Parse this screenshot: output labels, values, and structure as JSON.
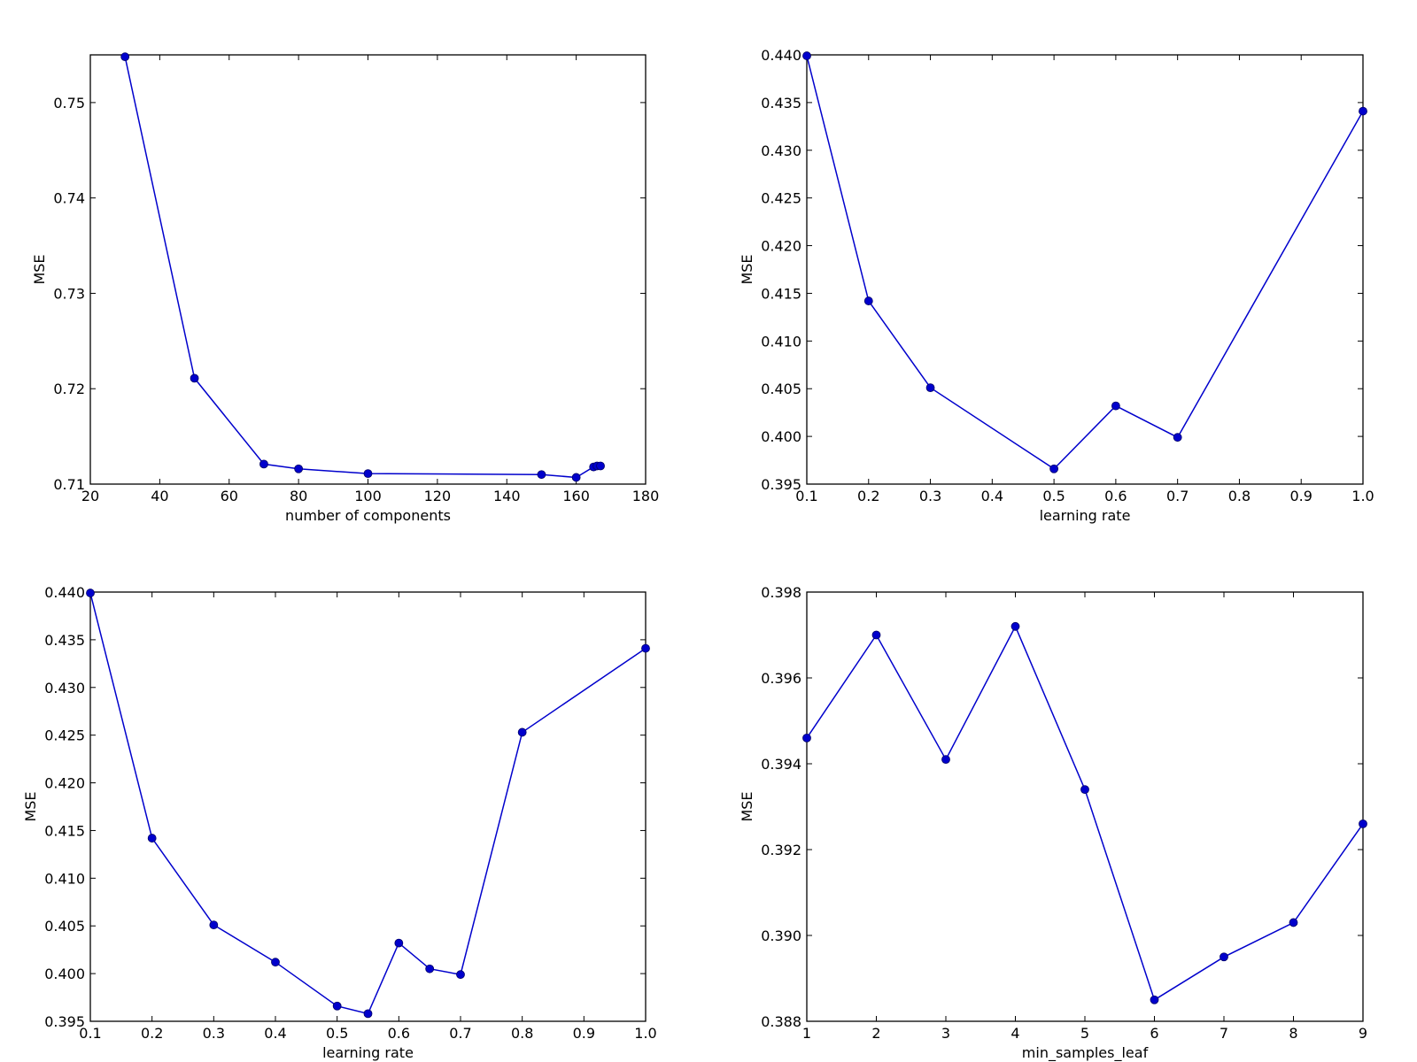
{
  "colors": {
    "line": "#0000cc",
    "marker": "#0000cc",
    "marker_edge": "#000066",
    "axes": "#000000",
    "background": "#ffffff"
  },
  "chart_data": [
    {
      "type": "line",
      "title": "",
      "xlabel": "number of components",
      "ylabel": "MSE",
      "xlim": [
        20,
        180
      ],
      "ylim": [
        0.71,
        0.755
      ],
      "xticks": [
        20,
        40,
        60,
        80,
        100,
        120,
        140,
        160,
        180
      ],
      "yticks": [
        0.71,
        0.72,
        0.73,
        0.74,
        0.75
      ],
      "xtick_labels": [
        "20",
        "40",
        "60",
        "80",
        "100",
        "120",
        "140",
        "160",
        "180"
      ],
      "ytick_labels": [
        "0.71",
        "0.72",
        "0.73",
        "0.74",
        "0.75"
      ],
      "grid": false,
      "x": [
        30,
        50,
        70,
        80,
        100,
        150,
        160,
        165,
        166,
        167
      ],
      "y": [
        0.7548,
        0.7211,
        0.7121,
        0.7116,
        0.7111,
        0.711,
        0.7107,
        0.7118,
        0.7119,
        0.7119
      ]
    },
    {
      "type": "line",
      "title": "",
      "xlabel": "learning rate",
      "ylabel": "MSE",
      "xlim": [
        0.1,
        1.0
      ],
      "ylim": [
        0.395,
        0.44
      ],
      "xticks": [
        0.1,
        0.2,
        0.3,
        0.4,
        0.5,
        0.6,
        0.7,
        0.8,
        0.9,
        1.0
      ],
      "yticks": [
        0.395,
        0.4,
        0.405,
        0.41,
        0.415,
        0.42,
        0.425,
        0.43,
        0.435,
        0.44
      ],
      "xtick_labels": [
        "0.1",
        "0.2",
        "0.3",
        "0.4",
        "0.5",
        "0.6",
        "0.7",
        "0.8",
        "0.9",
        "1.0"
      ],
      "ytick_labels": [
        "0.395",
        "0.400",
        "0.405",
        "0.410",
        "0.415",
        "0.420",
        "0.425",
        "0.430",
        "0.435",
        "0.440"
      ],
      "grid": false,
      "x": [
        0.1,
        0.2,
        0.3,
        0.5,
        0.6,
        0.7,
        1.0
      ],
      "y": [
        0.4399,
        0.4142,
        0.4051,
        0.3966,
        0.4032,
        0.3999,
        0.4341
      ]
    },
    {
      "type": "line",
      "title": "",
      "xlabel": "learning rate",
      "ylabel": "MSE",
      "xlim": [
        0.1,
        1.0
      ],
      "ylim": [
        0.395,
        0.44
      ],
      "xticks": [
        0.1,
        0.2,
        0.3,
        0.4,
        0.5,
        0.6,
        0.7,
        0.8,
        0.9,
        1.0
      ],
      "yticks": [
        0.395,
        0.4,
        0.405,
        0.41,
        0.415,
        0.42,
        0.425,
        0.43,
        0.435,
        0.44
      ],
      "xtick_labels": [
        "0.1",
        "0.2",
        "0.3",
        "0.4",
        "0.5",
        "0.6",
        "0.7",
        "0.8",
        "0.9",
        "1.0"
      ],
      "ytick_labels": [
        "0.395",
        "0.400",
        "0.405",
        "0.410",
        "0.415",
        "0.420",
        "0.425",
        "0.430",
        "0.435",
        "0.440"
      ],
      "grid": false,
      "x": [
        0.1,
        0.2,
        0.3,
        0.4,
        0.5,
        0.55,
        0.6,
        0.65,
        0.7,
        0.8,
        1.0
      ],
      "y": [
        0.4399,
        0.4142,
        0.4051,
        0.4012,
        0.3966,
        0.3958,
        0.4032,
        0.4005,
        0.3999,
        0.4253,
        0.4341
      ]
    },
    {
      "type": "line",
      "title": "",
      "xlabel": "min_samples_leaf",
      "ylabel": "MSE",
      "xlim": [
        1,
        9
      ],
      "ylim": [
        0.388,
        0.398
      ],
      "xticks": [
        1,
        2,
        3,
        4,
        5,
        6,
        7,
        8,
        9
      ],
      "yticks": [
        0.388,
        0.39,
        0.392,
        0.394,
        0.396,
        0.398
      ],
      "xtick_labels": [
        "1",
        "2",
        "3",
        "4",
        "5",
        "6",
        "7",
        "8",
        "9"
      ],
      "ytick_labels": [
        "0.388",
        "0.390",
        "0.392",
        "0.394",
        "0.396",
        "0.398"
      ],
      "grid": false,
      "x": [
        1,
        2,
        3,
        4,
        5,
        6,
        7,
        8,
        9
      ],
      "y": [
        0.3946,
        0.397,
        0.3941,
        0.3972,
        0.3934,
        0.3885,
        0.3895,
        0.3903,
        0.3926
      ]
    }
  ]
}
